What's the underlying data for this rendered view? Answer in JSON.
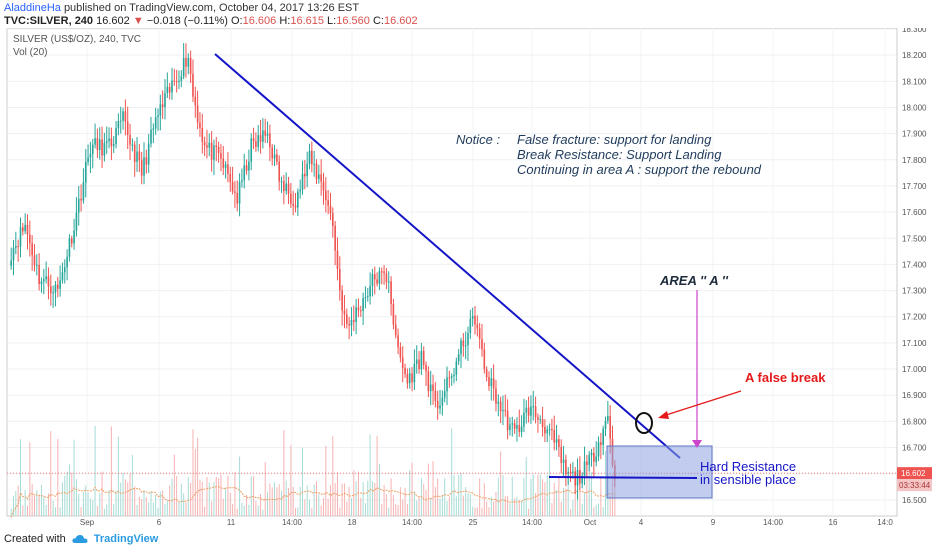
{
  "header": {
    "author": "AladdineHa",
    "published": "published on TradingView.com, October 04, 2017 13:26 EST",
    "symbol": "TVC:SILVER, 240",
    "last": "16.602",
    "change": "−0.018 (−0.11%)",
    "o_label": "O:",
    "o": "16.606",
    "h_label": "H:",
    "h": "16.615",
    "l_label": "L:",
    "l": "16.560",
    "c_label": "C:",
    "c": "16.602"
  },
  "legend": {
    "series": "SILVER (US$/OZ), 240, TVC",
    "volume": "Vol (20)"
  },
  "footer": {
    "created_with": "Created with",
    "brand": "TradingView"
  },
  "colors": {
    "up": "#26a69a",
    "down": "#ef5350",
    "trendline": "#1515c8",
    "annotation_red": "#e51919",
    "arrow_magenta": "#cc44cc",
    "box_fill": "#8ea2e0"
  },
  "chart_data": {
    "type": "candlestick",
    "price_axis": {
      "ticks": [
        "18.300",
        "18.200",
        "18.100",
        "18.000",
        "17.900",
        "17.800",
        "17.700",
        "17.600",
        "17.500",
        "17.400",
        "17.300",
        "17.200",
        "17.100",
        "17.000",
        "16.900",
        "16.800",
        "16.700",
        "16.600",
        "16.500"
      ],
      "range": [
        16.44,
        18.31
      ],
      "last_price_label": "16.602",
      "countdown_label": "03:33:44"
    },
    "time_axis": {
      "ticks": [
        "Sep",
        "6",
        "11",
        "14:00",
        "18",
        "14:00",
        "25",
        "14:00",
        "Oct",
        "4",
        "9",
        "14:00",
        "16",
        "14:0"
      ]
    },
    "annotations": {
      "notice_title": "Notice :",
      "notice_lines": [
        "False fracture: support for landing",
        "Break Resistance: Support Landing",
        "Continuing in area A : support the rebound"
      ],
      "area_a": "AREA '' A ''",
      "false_break": "A false break",
      "hard_resistance_1": "Hard Resistance",
      "hard_resistance_2": "in sensible place"
    },
    "anchors": [
      [
        0,
        17.45
      ],
      [
        6,
        17.55
      ],
      [
        12,
        17.35
      ],
      [
        20,
        17.3
      ],
      [
        27,
        17.55
      ],
      [
        34,
        17.85
      ],
      [
        42,
        17.85
      ],
      [
        48,
        17.95
      ],
      [
        56,
        17.75
      ],
      [
        62,
        17.95
      ],
      [
        70,
        18.1
      ],
      [
        76,
        18.2
      ],
      [
        78,
        18.05
      ],
      [
        83,
        17.85
      ],
      [
        90,
        17.8
      ],
      [
        97,
        17.65
      ],
      [
        103,
        17.85
      ],
      [
        110,
        17.9
      ],
      [
        116,
        17.7
      ],
      [
        122,
        17.65
      ],
      [
        128,
        17.8
      ],
      [
        134,
        17.7
      ],
      [
        138,
        17.55
      ],
      [
        141,
        17.3
      ],
      [
        144,
        17.15
      ],
      [
        150,
        17.25
      ],
      [
        156,
        17.35
      ],
      [
        162,
        17.35
      ],
      [
        165,
        17.1
      ],
      [
        170,
        16.95
      ],
      [
        176,
        17.05
      ],
      [
        182,
        16.85
      ],
      [
        188,
        16.95
      ],
      [
        194,
        17.1
      ],
      [
        199,
        17.2
      ],
      [
        203,
        17.0
      ],
      [
        210,
        16.85
      ],
      [
        216,
        16.75
      ],
      [
        222,
        16.85
      ],
      [
        228,
        16.8
      ],
      [
        234,
        16.7
      ],
      [
        238,
        16.6
      ],
      [
        242,
        16.58
      ],
      [
        247,
        16.62
      ],
      [
        252,
        16.72
      ],
      [
        256,
        16.82
      ],
      [
        258,
        16.65
      ],
      [
        259,
        16.6
      ]
    ]
  }
}
